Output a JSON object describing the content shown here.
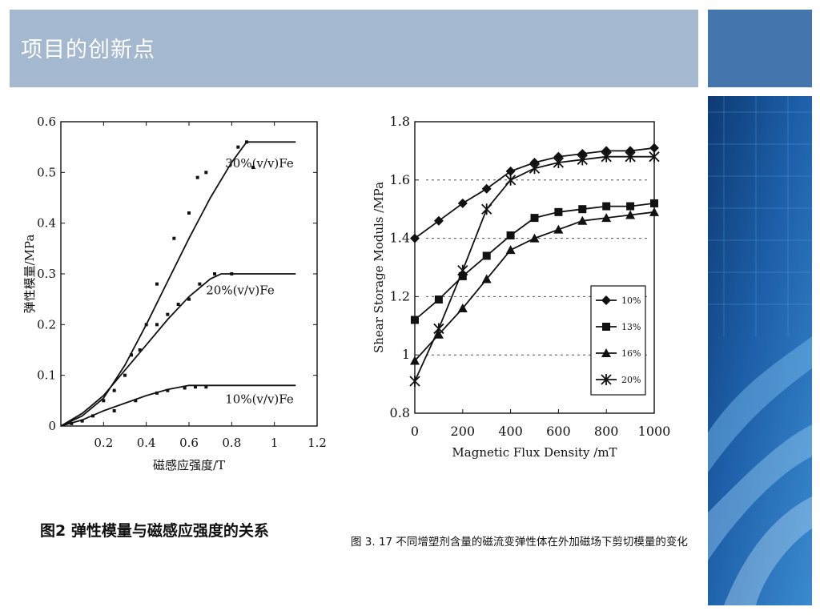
{
  "slide": {
    "title": "项目的创新点",
    "colors": {
      "title_bar": "#a4b9cf",
      "corner_block": "#4575ad",
      "panel_dark": "#0f3c78",
      "panel_light": "#5aa0d8"
    }
  },
  "chart_data": [
    {
      "type": "line",
      "title": "",
      "xlabel": "磁感应强度/T",
      "ylabel": "弹性模量/MPa",
      "xlim": [
        0,
        1.2
      ],
      "ylim": [
        0,
        0.6
      ],
      "x_ticks": [
        "0.2",
        "0.4",
        "0.6",
        "0.8",
        "1",
        "1.2"
      ],
      "y_ticks": [
        "0",
        "0.1",
        "0.2",
        "0.3",
        "0.4",
        "0.5",
        "0.6"
      ],
      "caption": "图2   弹性模量与磁感应强度的关系",
      "series": [
        {
          "name": "30%(v/v)Fe",
          "fit": [
            [
              0,
              0
            ],
            [
              0.1,
              0.02
            ],
            [
              0.2,
              0.055
            ],
            [
              0.3,
              0.12
            ],
            [
              0.4,
              0.2
            ],
            [
              0.5,
              0.285
            ],
            [
              0.6,
              0.37
            ],
            [
              0.7,
              0.45
            ],
            [
              0.8,
              0.52
            ],
            [
              0.87,
              0.56
            ],
            [
              1.1,
              0.56
            ]
          ],
          "points": [
            [
              0.25,
              0.07
            ],
            [
              0.33,
              0.14
            ],
            [
              0.4,
              0.2
            ],
            [
              0.45,
              0.28
            ],
            [
              0.53,
              0.37
            ],
            [
              0.6,
              0.42
            ],
            [
              0.64,
              0.49
            ],
            [
              0.68,
              0.5
            ],
            [
              0.83,
              0.55
            ],
            [
              0.87,
              0.56
            ],
            [
              0.9,
              0.51
            ]
          ]
        },
        {
          "name": "20%(v/v)Fe",
          "fit": [
            [
              0,
              0
            ],
            [
              0.1,
              0.025
            ],
            [
              0.2,
              0.06
            ],
            [
              0.3,
              0.11
            ],
            [
              0.4,
              0.16
            ],
            [
              0.5,
              0.21
            ],
            [
              0.6,
              0.255
            ],
            [
              0.7,
              0.29
            ],
            [
              0.75,
              0.3
            ],
            [
              1.1,
              0.3
            ]
          ],
          "points": [
            [
              0.2,
              0.05
            ],
            [
              0.3,
              0.1
            ],
            [
              0.37,
              0.15
            ],
            [
              0.45,
              0.2
            ],
            [
              0.5,
              0.22
            ],
            [
              0.55,
              0.24
            ],
            [
              0.6,
              0.25
            ],
            [
              0.65,
              0.28
            ],
            [
              0.72,
              0.3
            ],
            [
              0.8,
              0.3
            ]
          ]
        },
        {
          "name": "10%(v/v)Fe",
          "fit": [
            [
              0,
              0
            ],
            [
              0.1,
              0.012
            ],
            [
              0.2,
              0.03
            ],
            [
              0.3,
              0.045
            ],
            [
              0.4,
              0.06
            ],
            [
              0.5,
              0.072
            ],
            [
              0.6,
              0.08
            ],
            [
              1.1,
              0.08
            ]
          ],
          "points": [
            [
              0.05,
              0.005
            ],
            [
              0.1,
              0.01
            ],
            [
              0.15,
              0.02
            ],
            [
              0.25,
              0.03
            ],
            [
              0.35,
              0.05
            ],
            [
              0.45,
              0.065
            ],
            [
              0.5,
              0.07
            ],
            [
              0.58,
              0.075
            ],
            [
              0.63,
              0.077
            ],
            [
              0.68,
              0.077
            ]
          ]
        }
      ]
    },
    {
      "type": "line",
      "title": "",
      "xlabel": "Magnetic Flux Density /mT",
      "ylabel": "Shear Storage Moduls /MPa",
      "xlim": [
        0,
        1000
      ],
      "ylim": [
        0.8,
        1.8
      ],
      "x_ticks": [
        "0",
        "200",
        "400",
        "600",
        "800",
        "1000"
      ],
      "y_ticks": [
        "0.8",
        "1",
        "1.2",
        "1.4",
        "1.6",
        "1.8"
      ],
      "legend_position": "right",
      "caption": "图 3. 17  不同增塑剂含量的磁流变弹性体在外加磁场下剪切模量的变化",
      "x": [
        0,
        100,
        200,
        300,
        400,
        500,
        600,
        700,
        800,
        900,
        1000
      ],
      "series": [
        {
          "name": "10%",
          "marker": "diamond",
          "values": [
            1.4,
            1.46,
            1.52,
            1.57,
            1.63,
            1.66,
            1.68,
            1.69,
            1.7,
            1.7,
            1.71
          ]
        },
        {
          "name": "13%",
          "marker": "square",
          "values": [
            1.12,
            1.19,
            1.27,
            1.34,
            1.41,
            1.47,
            1.49,
            1.5,
            1.51,
            1.51,
            1.52
          ]
        },
        {
          "name": "16%",
          "marker": "triangle",
          "values": [
            0.98,
            1.07,
            1.16,
            1.26,
            1.36,
            1.4,
            1.43,
            1.46,
            1.47,
            1.48,
            1.49
          ]
        },
        {
          "name": "20%",
          "marker": "asterisk",
          "values": [
            0.91,
            1.09,
            1.29,
            1.5,
            1.6,
            1.64,
            1.66,
            1.67,
            1.68,
            1.68,
            1.68
          ]
        }
      ]
    }
  ]
}
